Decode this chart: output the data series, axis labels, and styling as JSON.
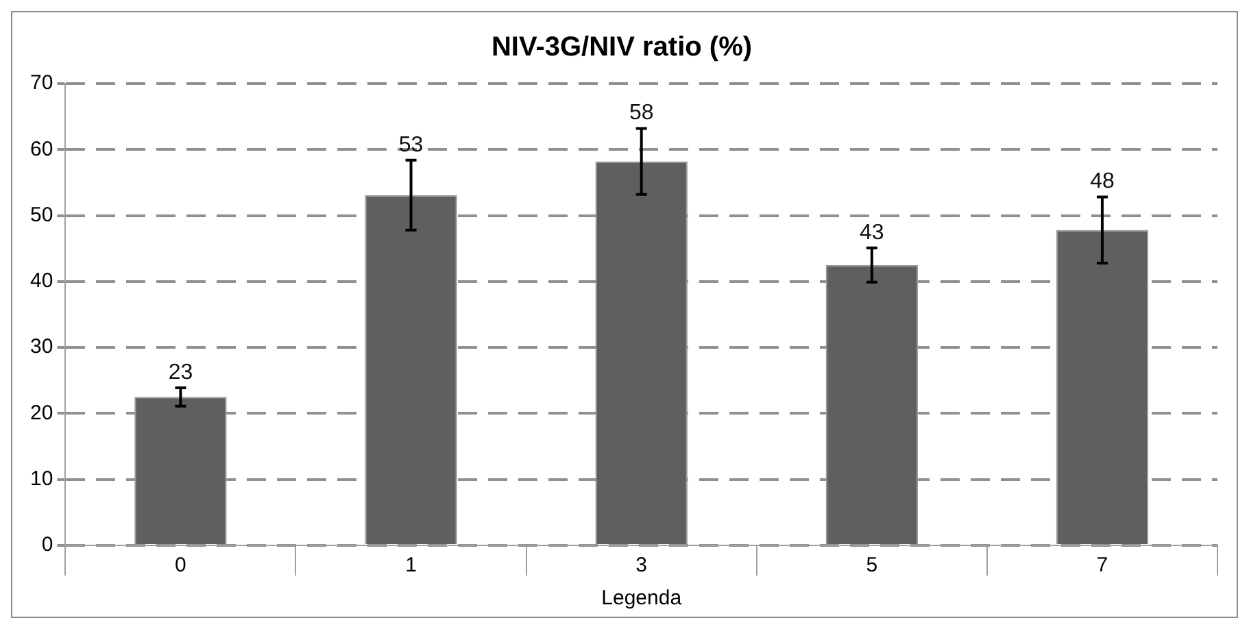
{
  "chart_data": {
    "type": "bar",
    "title": "NIV-3G/NIV ratio (%)",
    "xlabel": "Legenda",
    "categories": [
      "0",
      "1",
      "3",
      "5",
      "7"
    ],
    "values": [
      22.5,
      53.1,
      58.2,
      42.5,
      47.8
    ],
    "errors": [
      1.4,
      5.3,
      5,
      2.6,
      5
    ],
    "value_labels": [
      "23",
      "53",
      "58",
      "43",
      "48"
    ],
    "color": "#5f5f5f",
    "ylim": [
      0,
      70
    ],
    "yticks": [
      0,
      10,
      20,
      30,
      40,
      50,
      60,
      70
    ],
    "grid": "y",
    "legend": false
  }
}
